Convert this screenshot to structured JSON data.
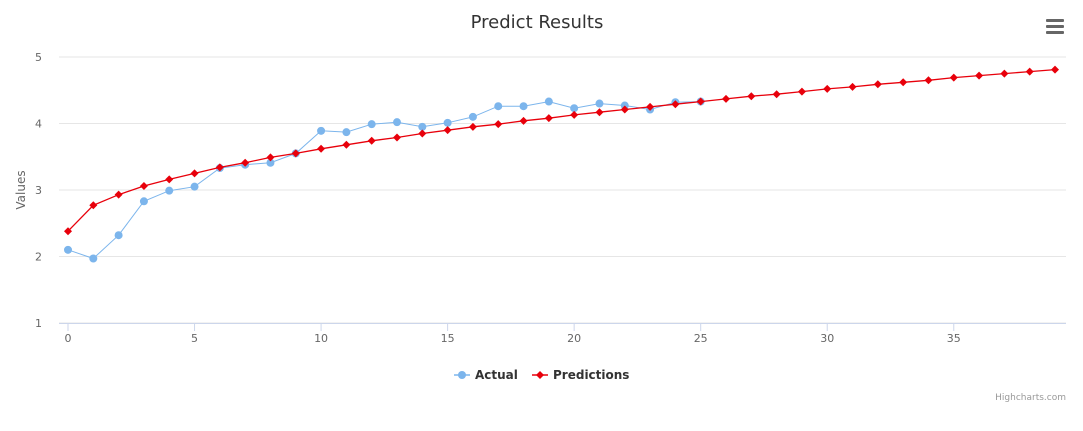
{
  "chart_data": {
    "type": "line",
    "title": "Predict Results",
    "xlabel": "",
    "ylabel": "Values",
    "xlim": [
      0,
      39
    ],
    "ylim": [
      1,
      5
    ],
    "x_ticks": [
      0,
      5,
      10,
      15,
      20,
      25,
      30,
      35
    ],
    "y_ticks": [
      1,
      2,
      3,
      4,
      5
    ],
    "grid": "horizontal",
    "legend_position": "bottom-center",
    "series": [
      {
        "name": "Actual",
        "color": "#7cb5ec",
        "marker": "circle",
        "values": [
          2.1,
          1.97,
          2.32,
          2.83,
          2.99,
          3.05,
          3.33,
          3.38,
          3.41,
          3.55,
          3.89,
          3.87,
          3.99,
          4.02,
          3.95,
          4.01,
          4.1,
          4.26,
          4.26,
          4.33,
          4.23,
          4.3,
          4.27,
          4.21,
          4.32,
          4.33
        ]
      },
      {
        "name": "Predictions",
        "color": "#e8000b",
        "marker": "diamond",
        "values": [
          2.38,
          2.77,
          2.93,
          3.06,
          3.16,
          3.25,
          3.34,
          3.41,
          3.49,
          3.55,
          3.62,
          3.68,
          3.74,
          3.79,
          3.85,
          3.9,
          3.95,
          3.99,
          4.04,
          4.08,
          4.13,
          4.17,
          4.21,
          4.25,
          4.29,
          4.33,
          4.37,
          4.41,
          4.44,
          4.48,
          4.52,
          4.55,
          4.59,
          4.62,
          4.65,
          4.69,
          4.72,
          4.75,
          4.78,
          4.81
        ]
      }
    ]
  },
  "credits": "Highcharts.com",
  "menu_icon": "hamburger-menu-icon"
}
